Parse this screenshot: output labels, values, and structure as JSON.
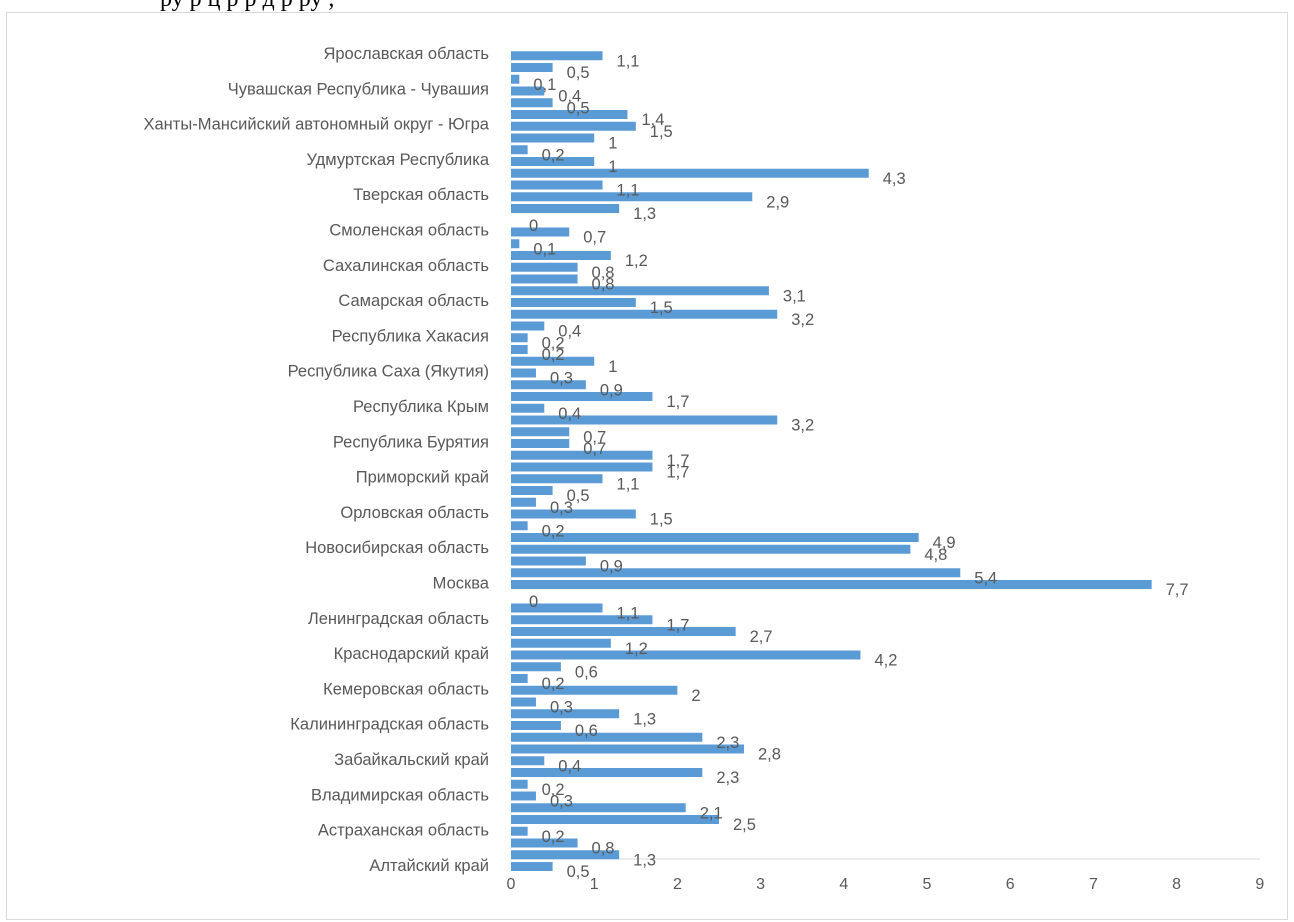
{
  "caption": "ру                                  р    ц              р     р  д р            ру  ,",
  "colors": {
    "bar": "#5b9bd5",
    "axis": "#d9d9d9",
    "text": "#595959"
  },
  "chart_data": {
    "type": "bar",
    "orientation": "horizontal",
    "title": "",
    "xlabel": "",
    "ylabel": "",
    "xlim": [
      0,
      9
    ],
    "x_ticks": [
      "0",
      "1",
      "2",
      "3",
      "4",
      "5",
      "6",
      "7",
      "8",
      "9"
    ],
    "grid": false,
    "legend": "none",
    "categories": [
      "Алтайский край",
      "Астраханская область",
      "Владимирская область",
      "Забайкальский край",
      "Калининградская область",
      "Кемеровская область",
      "Краснодарский край",
      "Ленинградская область",
      "Москва",
      "Новосибирская область",
      "Орловская область",
      "Приморский край",
      "Республика Бурятия",
      "Республика Крым",
      "Республика Саха (Якутия)",
      "Республика Хакасия",
      "Самарская область",
      "Сахалинская область",
      "Смоленская область",
      "Тверская область",
      "Удмуртская Республика",
      "Ханты-Мансийский автономный округ - Югра",
      "Чувашская Республика - Чувашия",
      "Ярославская область"
    ],
    "bars_per_category": 3,
    "values": [
      [
        0.5,
        1.3,
        0.8
      ],
      [
        0.2,
        2.5,
        2.1
      ],
      [
        0.3,
        0.2,
        2.3
      ],
      [
        0.4,
        2.8,
        2.3
      ],
      [
        0.6,
        1.3,
        0.3
      ],
      [
        2,
        0.2,
        0.6
      ],
      [
        4.2,
        1.2,
        2.7
      ],
      [
        1.7,
        1.1,
        0
      ],
      [
        7.7,
        5.4,
        0.9
      ],
      [
        4.8,
        4.9,
        0.2
      ],
      [
        1.5,
        0.3,
        0.5
      ],
      [
        1.1,
        1.7,
        1.7
      ],
      [
        0.7,
        0.7,
        3.2
      ],
      [
        0.4,
        1.7,
        0.9
      ],
      [
        0.3,
        1,
        0.2
      ],
      [
        0.2,
        0.4,
        3.2
      ],
      [
        1.5,
        3.1,
        0.8
      ],
      [
        0.8,
        1.2,
        0.1
      ],
      [
        0.7,
        0,
        1.3
      ],
      [
        2.9,
        1.1,
        4.3
      ],
      [
        1,
        0.2,
        1
      ],
      [
        1.5,
        1.4,
        0.5
      ],
      [
        0.4,
        0.1,
        0.5
      ],
      [
        1.1,
        null,
        null
      ]
    ],
    "value_labels": [
      [
        "0,5",
        "1,3",
        "0,8"
      ],
      [
        "0,2",
        "2,5",
        "2,1"
      ],
      [
        "0,3",
        "0,2",
        "2,3"
      ],
      [
        "0,4",
        "2,8",
        "2,3"
      ],
      [
        "0,6",
        "1,3",
        "0,3"
      ],
      [
        "2",
        "0,2",
        "0,6"
      ],
      [
        "4,2",
        "1,2",
        "2,7"
      ],
      [
        "1,7",
        "1,1",
        "0"
      ],
      [
        "7,7",
        "5,4",
        "0,9"
      ],
      [
        "4,8",
        "4,9",
        "0,2"
      ],
      [
        "1,5",
        "0,3",
        "0,5"
      ],
      [
        "1,1",
        "1,7",
        "1,7"
      ],
      [
        "0,7",
        "0,7",
        "3,2"
      ],
      [
        "0,4",
        "1,7",
        "0,9"
      ],
      [
        "0,3",
        "1",
        "0,2"
      ],
      [
        "0,2",
        "0,4",
        "3,2"
      ],
      [
        "1,5",
        "3,1",
        "0,8"
      ],
      [
        "0,8",
        "1,2",
        "0,1"
      ],
      [
        "0,7",
        "0",
        "1,3"
      ],
      [
        "2,9",
        "1,1",
        "4,3"
      ],
      [
        "1",
        "0,2",
        "1"
      ],
      [
        "1,5",
        "1,4",
        "0,5"
      ],
      [
        "0,4",
        "0,1",
        "0,5"
      ],
      [
        "1,1",
        "",
        ""
      ]
    ]
  }
}
